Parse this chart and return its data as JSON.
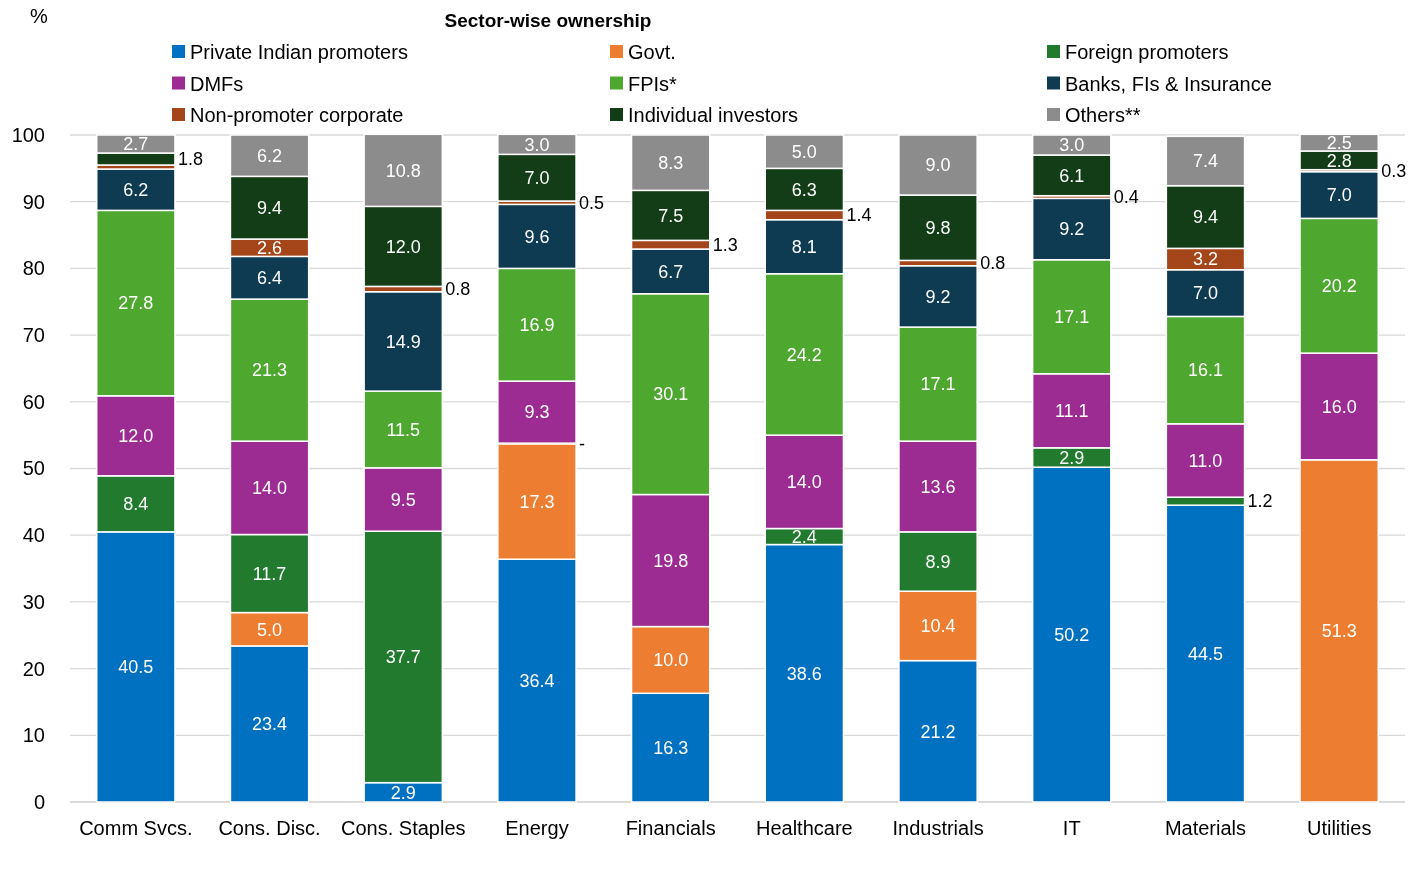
{
  "chart_data": {
    "type": "bar",
    "stacked": true,
    "title": "Sector-wise ownership",
    "ylabel": "%",
    "categories": [
      "Comm Svcs.",
      "Cons. Disc.",
      "Cons. Staples",
      "Energy",
      "Financials",
      "Healthcare",
      "Industrials",
      "IT",
      "Materials",
      "Utilities"
    ],
    "ylim": [
      0,
      100
    ],
    "yticks": [
      0,
      10,
      20,
      30,
      40,
      50,
      60,
      70,
      80,
      90,
      100
    ],
    "grid": "y",
    "legend": "top",
    "series": [
      {
        "name": "Private Indian promoters",
        "color": "#0070c0",
        "values": [
          40.5,
          23.4,
          2.9,
          36.4,
          16.3,
          38.6,
          21.2,
          50.2,
          44.5,
          null
        ],
        "value_labels": [
          "40.5",
          "23.4",
          "2.9",
          "36.4",
          "16.3",
          "38.6",
          "21.2",
          "50.2",
          "44.5",
          null
        ]
      },
      {
        "name": "Govt.",
        "color": "#ed7d31",
        "values": [
          null,
          5.0,
          null,
          17.3,
          10.0,
          null,
          10.4,
          null,
          null,
          51.3
        ],
        "value_labels": [
          null,
          "5.0",
          null,
          "17.3",
          "10.0",
          null,
          "10.4",
          null,
          null,
          "51.3"
        ]
      },
      {
        "name": "Foreign promoters",
        "color": "#217a2e",
        "values": [
          8.4,
          11.7,
          37.7,
          0.1,
          null,
          2.4,
          8.9,
          2.9,
          1.2,
          null
        ],
        "value_labels": [
          "8.4",
          "11.7",
          "37.7",
          "-",
          null,
          "2.4",
          "8.9",
          "2.9",
          "1.2",
          null
        ]
      },
      {
        "name": "DMFs",
        "color": "#9c2b92",
        "values": [
          12.0,
          14.0,
          9.5,
          9.3,
          19.8,
          14.0,
          13.6,
          11.1,
          11.0,
          16.0
        ],
        "value_labels": [
          "12.0",
          "14.0",
          "9.5",
          "9.3",
          "19.8",
          "14.0",
          "13.6",
          "11.1",
          "11.0",
          "16.0"
        ]
      },
      {
        "name": "FPIs*",
        "color": "#4ea72e",
        "values": [
          27.8,
          21.3,
          11.5,
          16.9,
          30.1,
          24.2,
          17.1,
          17.1,
          16.1,
          20.2
        ],
        "value_labels": [
          "27.8",
          "21.3",
          "11.5",
          "16.9",
          "30.1",
          "24.2",
          "17.1",
          "17.1",
          "16.1",
          "20.2"
        ]
      },
      {
        "name": "Banks, FIs & Insurance",
        "color": "#0e3a52",
        "values": [
          6.2,
          6.4,
          14.9,
          9.6,
          6.7,
          8.1,
          9.2,
          9.2,
          7.0,
          7.0
        ],
        "value_labels": [
          "6.2",
          "6.4",
          "14.9",
          "9.6",
          "6.7",
          "8.1",
          "9.2",
          "9.2",
          "7.0",
          "7.0"
        ]
      },
      {
        "name": "Non-promoter corporate",
        "color": "#a5461a",
        "values": [
          0.6,
          2.6,
          0.8,
          0.5,
          1.3,
          1.4,
          0.8,
          0.4,
          3.2,
          0.3
        ],
        "value_labels": [
          null,
          "2.6",
          "0.8",
          "0.5",
          "1.3",
          "1.4",
          "0.8",
          "0.4",
          "3.2",
          "0.3"
        ]
      },
      {
        "name": "Individual investors",
        "color": "#133d16",
        "values": [
          1.8,
          9.4,
          12.0,
          7.0,
          7.5,
          6.3,
          9.8,
          6.1,
          9.4,
          2.8
        ],
        "value_labels": [
          "1.8",
          "9.4",
          "12.0",
          "7.0",
          "7.5",
          "6.3",
          "9.8",
          "6.1",
          "9.4",
          "2.8"
        ]
      },
      {
        "name": "Others**",
        "color": "#8c8c8c",
        "values": [
          2.7,
          6.2,
          10.8,
          3.0,
          8.3,
          5.0,
          9.0,
          3.0,
          7.4,
          2.5
        ],
        "value_labels": [
          "2.7",
          "6.2",
          "10.8",
          "3.0",
          "8.3",
          "5.0",
          "9.0",
          "3.0",
          "7.4",
          "2.5"
        ]
      }
    ]
  }
}
